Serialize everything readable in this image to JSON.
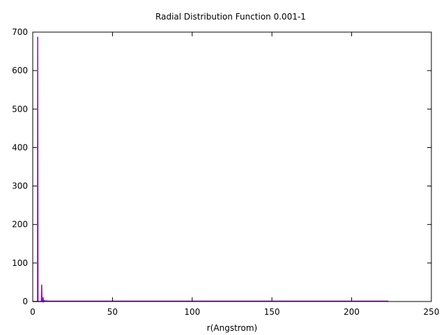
{
  "chart_data": {
    "type": "line",
    "title": "Radial Distribution Function 0.001-1",
    "xlabel": "r(Angstrom)",
    "ylabel": "",
    "xlim": [
      0,
      250
    ],
    "ylim": [
      0,
      700
    ],
    "xticks": [
      0,
      50,
      100,
      150,
      200,
      250
    ],
    "yticks": [
      0,
      100,
      200,
      300,
      400,
      500,
      600,
      700
    ],
    "grid": false,
    "legend": "none",
    "series": [
      {
        "color": "#9400d3",
        "x": [
          0,
          3.0,
          3.1,
          3.3,
          3.6,
          5.4,
          5.6,
          5.8,
          6.2,
          6.5,
          6.7,
          7.0,
          8.0,
          10.0,
          15.0,
          30.0,
          60.0,
          100.0,
          150.0,
          200.0,
          223.0
        ],
        "y": [
          0,
          0,
          688,
          0,
          0,
          0,
          44,
          0,
          0,
          11,
          0,
          2,
          1.5,
          1,
          1,
          1,
          1,
          1,
          1,
          1,
          1
        ]
      }
    ]
  }
}
